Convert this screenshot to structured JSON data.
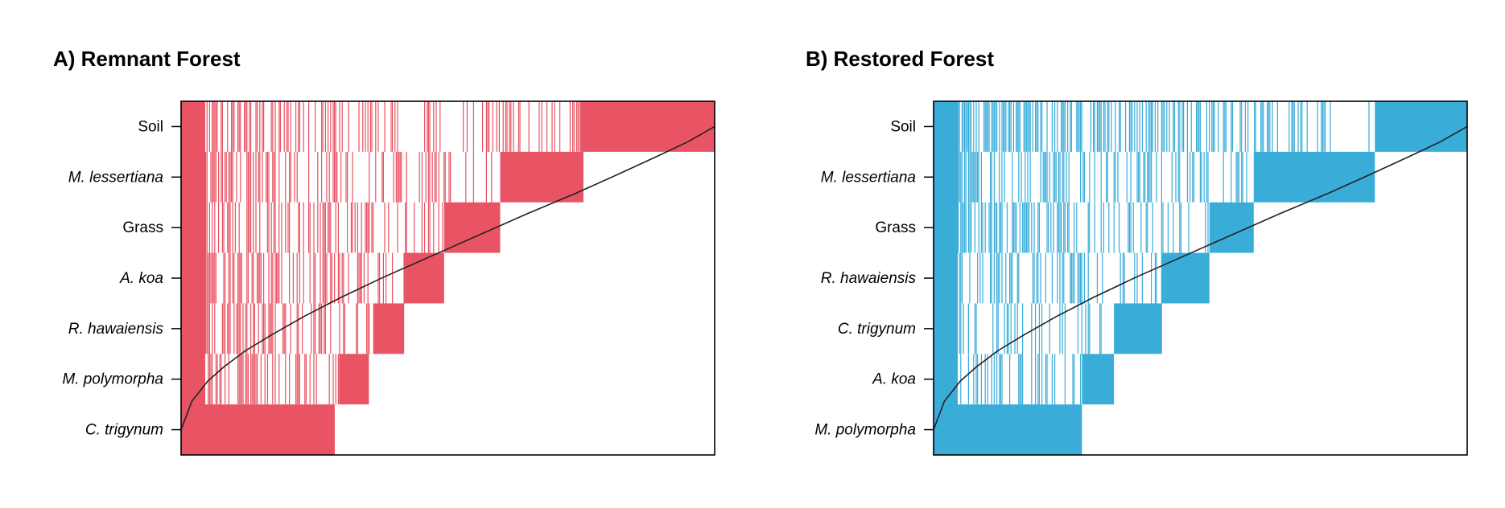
{
  "chart_data": [
    {
      "type": "heatmap",
      "title": "A) Remnant Forest",
      "color": "#E85463",
      "categories": [
        "Soil",
        "M. lessertiana",
        "Grass",
        "A. koa",
        "R. hawaiensis",
        "M. polymorpha",
        "C. trigynum"
      ],
      "italic": [
        false,
        true,
        false,
        true,
        true,
        true,
        true
      ],
      "block_ends": [
        1.0,
        0.754,
        0.598,
        0.493,
        0.418,
        0.352,
        0.288
      ],
      "density": [
        0.5,
        0.45,
        0.55,
        0.6,
        0.55,
        0.5,
        0.45
      ],
      "solid_start": [
        0.748,
        0.598,
        0.493,
        0.418,
        0.36,
        0.296,
        0.0
      ],
      "curve_x": [
        0,
        0.02,
        0.05,
        0.08,
        0.12,
        0.17,
        0.23,
        0.3,
        0.38,
        0.47,
        0.56,
        0.65,
        0.74,
        0.82,
        0.89,
        0.95,
        1.0
      ],
      "curve_y": [
        0,
        0.28,
        0.48,
        0.62,
        0.78,
        0.94,
        1.12,
        1.31,
        1.51,
        1.72,
        1.93,
        2.14,
        2.34,
        2.53,
        2.7,
        2.85,
        3.0
      ],
      "xlim": [
        0,
        1
      ],
      "grid": false
    },
    {
      "type": "heatmap",
      "title": "B) Restored Forest",
      "color": "#3AACD8",
      "categories": [
        "Soil",
        "M. lessertiana",
        "Grass",
        "R. hawaiensis",
        "C. trigynum",
        "A. koa",
        "M. polymorpha"
      ],
      "italic": [
        false,
        true,
        false,
        true,
        true,
        true,
        true
      ],
      "block_ends": [
        1.0,
        0.827,
        0.6,
        0.517,
        0.428,
        0.338,
        0.278
      ],
      "density": [
        0.55,
        0.45,
        0.55,
        0.55,
        0.5,
        0.55,
        0.6
      ],
      "solid_start": [
        0.827,
        0.6,
        0.517,
        0.428,
        0.338,
        0.278,
        0.0
      ],
      "curve_x": [
        0,
        0.02,
        0.05,
        0.08,
        0.12,
        0.17,
        0.23,
        0.3,
        0.38,
        0.47,
        0.56,
        0.65,
        0.74,
        0.82,
        0.89,
        0.95,
        1.0
      ],
      "curve_y": [
        0,
        0.28,
        0.48,
        0.62,
        0.78,
        0.94,
        1.12,
        1.31,
        1.51,
        1.72,
        1.93,
        2.14,
        2.34,
        2.53,
        2.7,
        2.85,
        3.0
      ],
      "xlim": [
        0,
        1
      ],
      "grid": false
    }
  ]
}
